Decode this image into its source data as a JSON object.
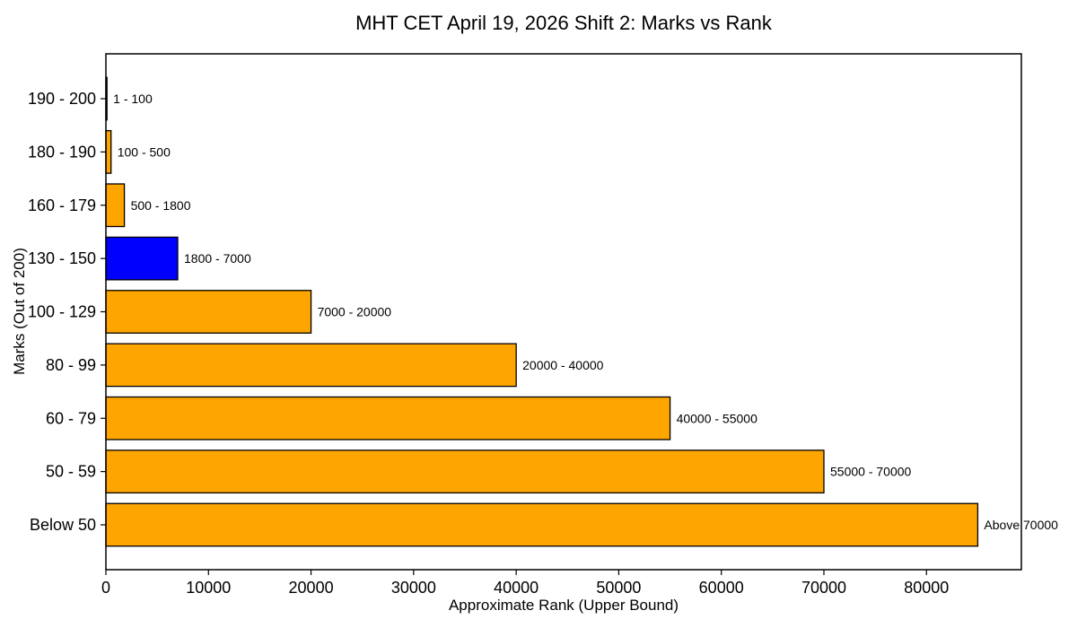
{
  "chart_data": {
    "type": "bar",
    "orientation": "horizontal",
    "title": "MHT CET April 19, 2026 Shift 2: Marks vs Rank",
    "xlabel": "Approximate Rank (Upper Bound)",
    "ylabel": "Marks (Out of 200)",
    "categories": [
      "190 - 200",
      "180 - 190",
      "160 - 179",
      "130 - 150",
      "100 - 129",
      "80 - 99",
      "60 - 79",
      "50 - 59",
      "Below 50"
    ],
    "values": [
      100,
      500,
      1800,
      7000,
      20000,
      40000,
      55000,
      70000,
      85000
    ],
    "bar_labels": [
      "1 - 100",
      "100 - 500",
      "500 - 1800",
      "1800 - 7000",
      "7000 - 20000",
      "20000 - 40000",
      "40000 - 55000",
      "55000 - 70000",
      "Above 70000"
    ],
    "bar_colors": [
      "#FFA500",
      "#FFA500",
      "#FFA500",
      "#0000FF",
      "#FFA500",
      "#FFA500",
      "#FFA500",
      "#FFA500",
      "#FFA500"
    ],
    "edge_color": "#000000",
    "highlight_color": "#0000FF",
    "default_bar_color": "#FFA500",
    "xlim": [
      0,
      89250
    ],
    "x_ticks": [
      0,
      10000,
      20000,
      30000,
      40000,
      50000,
      60000,
      70000,
      80000
    ],
    "grid": false,
    "legend": "none"
  }
}
